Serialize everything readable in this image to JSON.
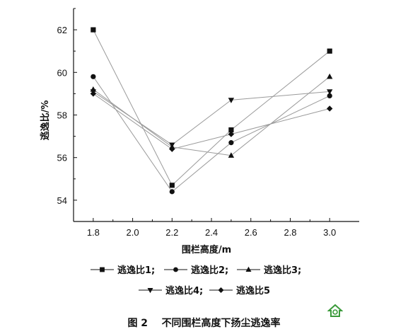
{
  "chart_data": {
    "type": "line",
    "title": "",
    "xlabel": "围栏高度/m",
    "ylabel": "逃逸比/%",
    "xlim": [
      1.7,
      3.15
    ],
    "ylim": [
      53,
      63
    ],
    "xticks": [
      1.8,
      2.0,
      2.2,
      2.4,
      2.6,
      2.8,
      3.0
    ],
    "xtick_labels": [
      "1.8",
      "2.0",
      "2.2",
      "2.4",
      "2.6",
      "2.8",
      "3.0"
    ],
    "yticks": [
      54,
      56,
      58,
      60,
      62
    ],
    "ytick_labels": [
      "54",
      "56",
      "58",
      "60",
      "62"
    ],
    "x": [
      1.8,
      2.2,
      2.5,
      3.0
    ],
    "grid": false,
    "legend_position": "bottom",
    "series": [
      {
        "name": "逃逸比1",
        "marker": "square",
        "values": [
          62.0,
          54.7,
          57.3,
          61.0
        ]
      },
      {
        "name": "逃逸比2",
        "marker": "circle",
        "values": [
          59.8,
          54.4,
          56.7,
          58.9
        ]
      },
      {
        "name": "逃逸比3",
        "marker": "triangle-up",
        "values": [
          59.2,
          56.5,
          56.1,
          59.8
        ]
      },
      {
        "name": "逃逸比4",
        "marker": "triangle-down",
        "values": [
          59.1,
          56.6,
          58.7,
          59.1
        ]
      },
      {
        "name": "逃逸比5",
        "marker": "diamond",
        "values": [
          59.0,
          56.4,
          57.1,
          58.3
        ]
      }
    ],
    "legend_separators": [
      ";",
      ";",
      ";",
      ";",
      ""
    ]
  },
  "caption": {
    "label": "图 2",
    "text": "不同围栏高度下扬尘逃逸率"
  },
  "colors": {
    "line": "#9a9a9a",
    "marker": "#111111",
    "axis": "#111111",
    "logo": "#3a9a3a"
  },
  "icons": {
    "corner_logo": "house-logo-icon"
  }
}
